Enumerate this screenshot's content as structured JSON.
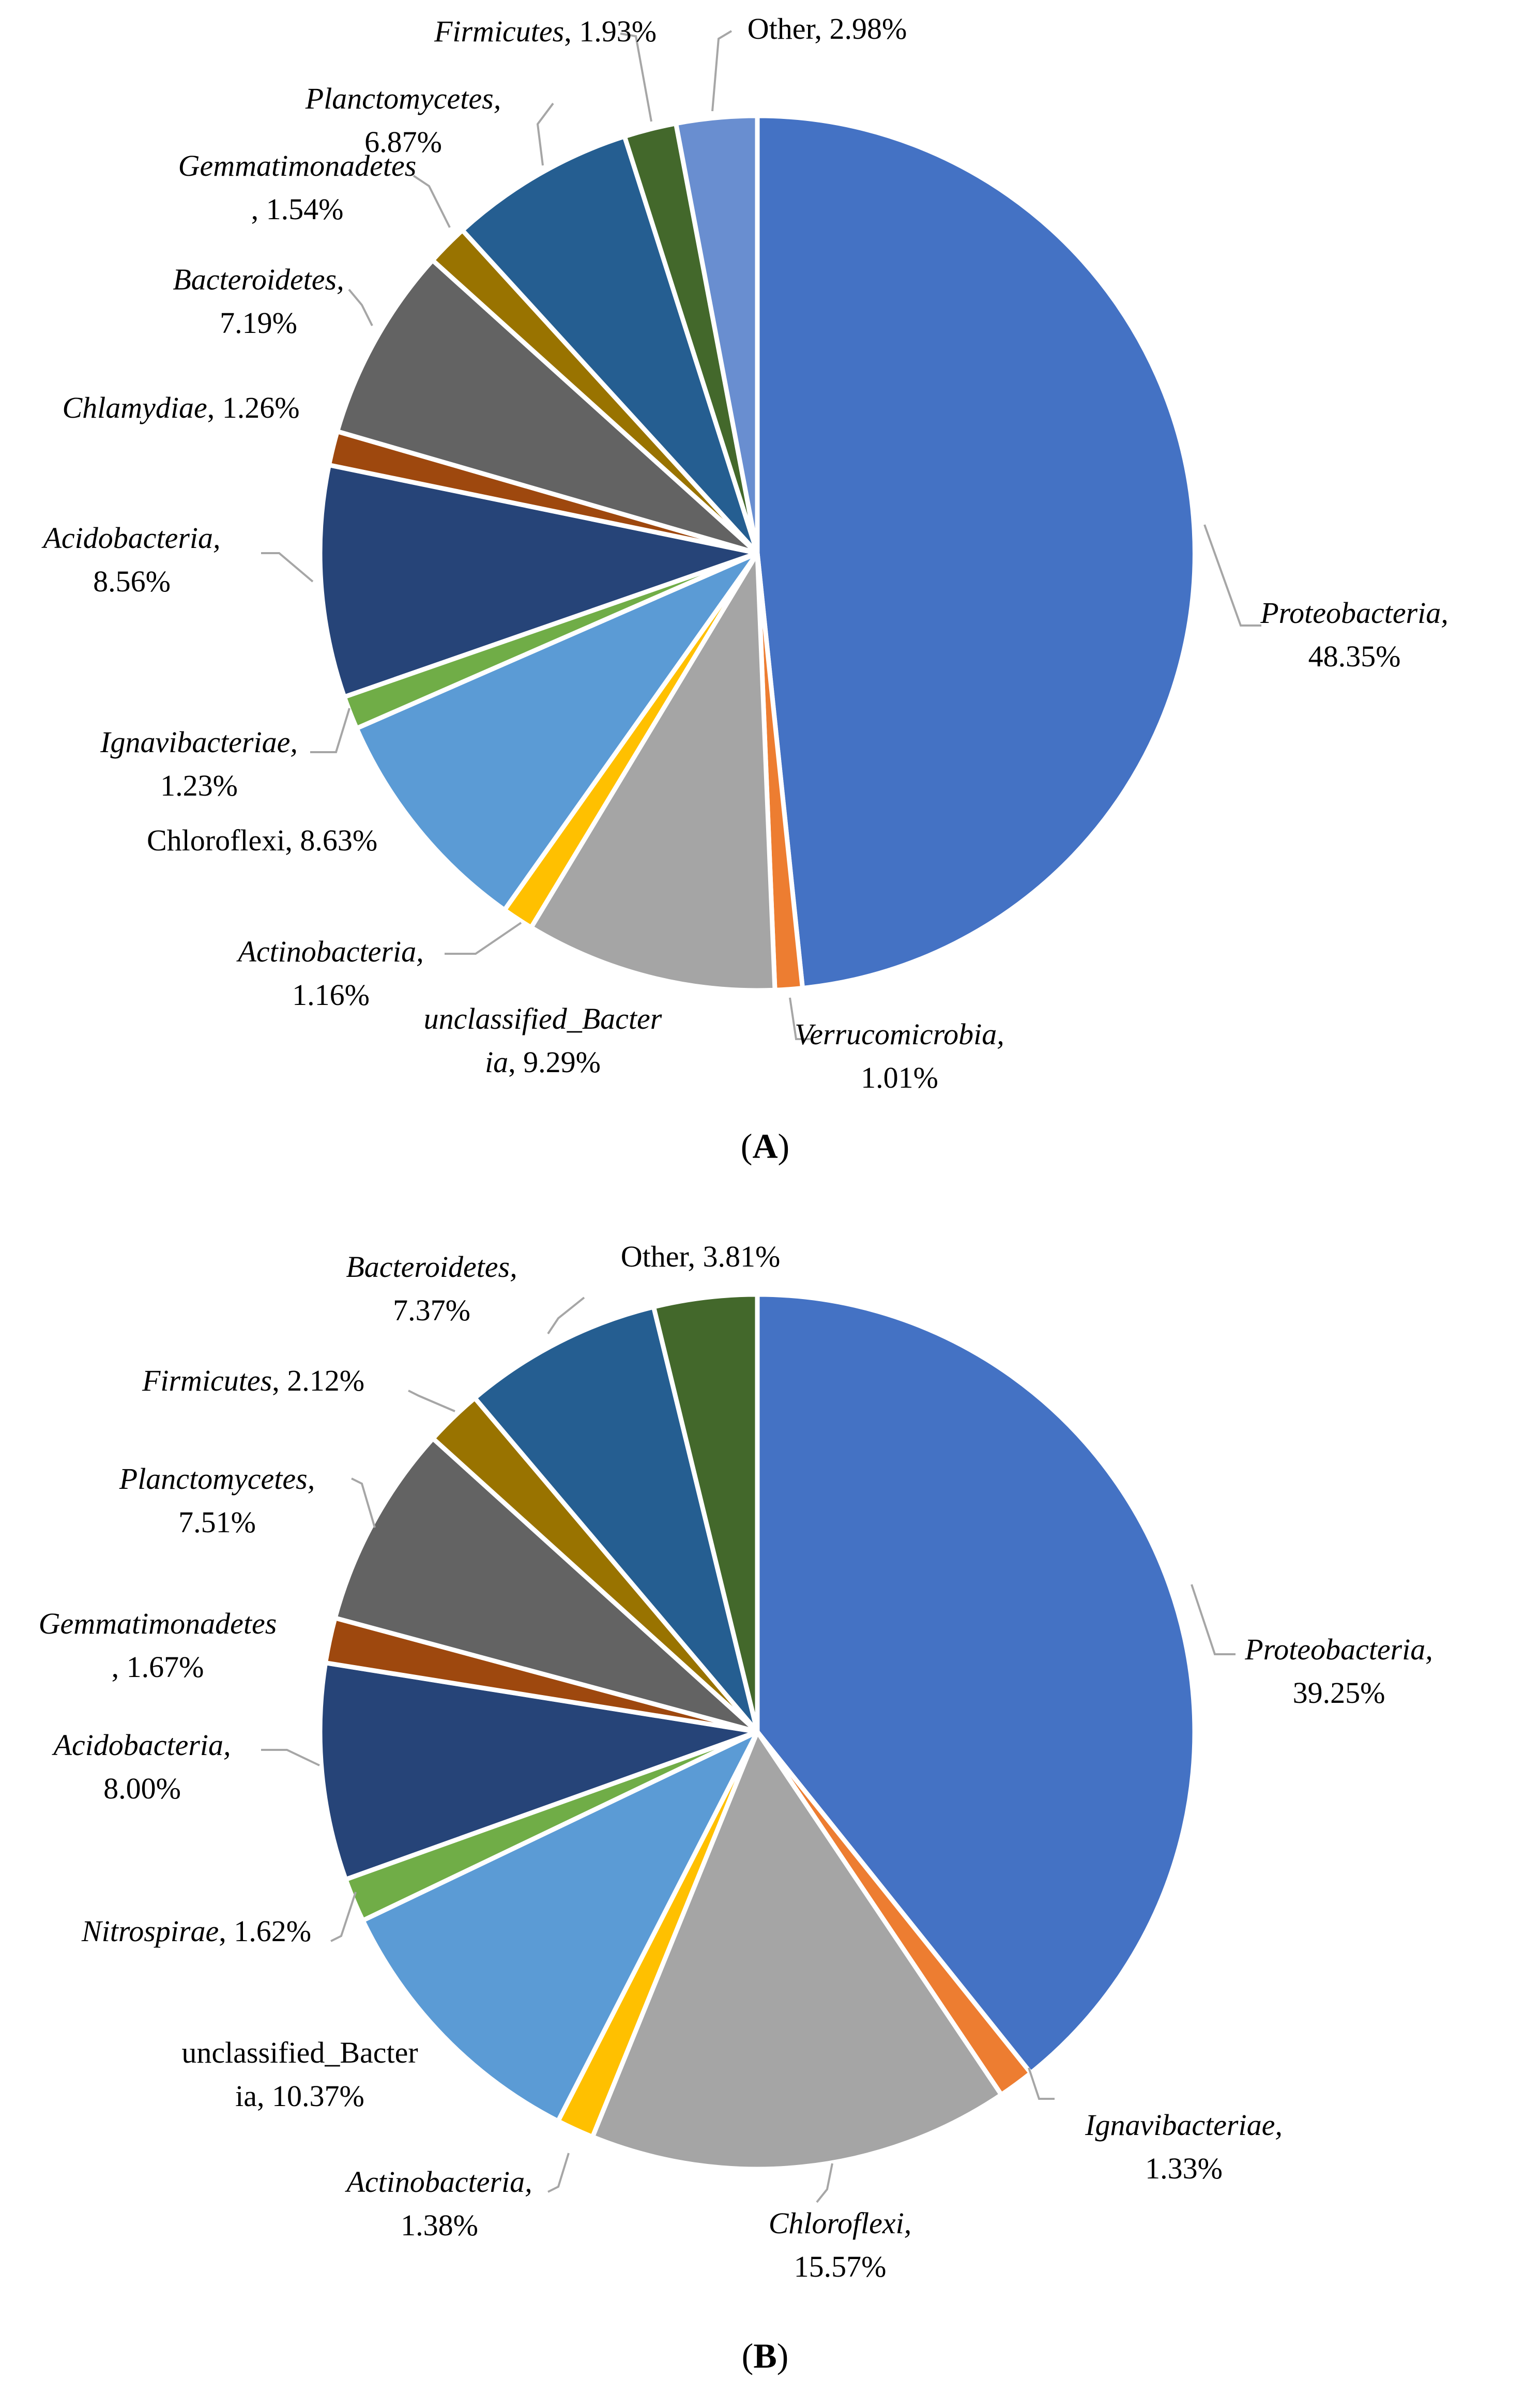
{
  "chart_data": [
    {
      "type": "pie",
      "caption": {
        "open": "(",
        "letter": "A",
        "close": ")"
      },
      "slices": [
        {
          "name": "Proteobacteria",
          "italic": true,
          "value": 48.35,
          "color": "#4472C4",
          "label": [
            [
              {
                "t": "Proteobacteria,",
                "i": true
              }
            ],
            [
              {
                "t": "48.35%"
              }
            ]
          ]
        },
        {
          "name": "Verrucomicrobia",
          "italic": true,
          "value": 1.01,
          "color": "#ED7D31",
          "label": [
            [
              {
                "t": "Verrucomicrobia,",
                "i": true
              }
            ],
            [
              {
                "t": "1.01%"
              }
            ]
          ]
        },
        {
          "name": "unclassified_Bacteria",
          "italic": true,
          "value": 9.29,
          "color": "#A5A5A5",
          "label": [
            [
              {
                "t": "unclassified_Bacter",
                "i": true
              }
            ],
            [
              {
                "t": "ia",
                "i": true
              },
              {
                "t": ", 9.29%"
              }
            ]
          ]
        },
        {
          "name": "Actinobacteria",
          "italic": true,
          "value": 1.16,
          "color": "#FFC000",
          "label": [
            [
              {
                "t": "Actinobacteria,",
                "i": true
              }
            ],
            [
              {
                "t": "1.16%"
              }
            ]
          ]
        },
        {
          "name": "Chloroflexi",
          "italic": false,
          "value": 8.63,
          "color": "#5B9BD5",
          "label": [
            [
              {
                "t": "Chloroflexi, 8.63%"
              }
            ]
          ]
        },
        {
          "name": "Ignavibacteriae",
          "italic": true,
          "value": 1.23,
          "color": "#70AD47",
          "label": [
            [
              {
                "t": "Ignavibacteriae,",
                "i": true
              }
            ],
            [
              {
                "t": "1.23%"
              }
            ]
          ]
        },
        {
          "name": "Acidobacteria",
          "italic": true,
          "value": 8.56,
          "color": "#264478",
          "label": [
            [
              {
                "t": "Acidobacteria,",
                "i": true
              }
            ],
            [
              {
                "t": "8.56%"
              }
            ]
          ]
        },
        {
          "name": "Chlamydiae",
          "italic": true,
          "value": 1.26,
          "color": "#9E480E",
          "label": [
            [
              {
                "t": "Chlamydiae",
                "i": true
              },
              {
                "t": ", 1.26%"
              }
            ]
          ]
        },
        {
          "name": "Bacteroidetes",
          "italic": true,
          "value": 7.19,
          "color": "#636363",
          "label": [
            [
              {
                "t": "Bacteroidetes,",
                "i": true
              }
            ],
            [
              {
                "t": "7.19%"
              }
            ]
          ]
        },
        {
          "name": "Gemmatimonadetes",
          "italic": true,
          "value": 1.54,
          "color": "#997300",
          "label": [
            [
              {
                "t": "Gemmatimonadetes",
                "i": true
              }
            ],
            [
              {
                "t": ", 1.54%"
              }
            ]
          ]
        },
        {
          "name": "Planctomycetes",
          "italic": true,
          "value": 6.87,
          "color": "#255E91",
          "label": [
            [
              {
                "t": "Planctomycetes,",
                "i": true
              }
            ],
            [
              {
                "t": "6.87%"
              }
            ]
          ]
        },
        {
          "name": "Firmicutes",
          "italic": true,
          "value": 1.93,
          "color": "#43682B",
          "label": [
            [
              {
                "t": "Firmicutes",
                "i": true
              },
              {
                "t": ", 1.93%"
              }
            ]
          ]
        },
        {
          "name": "Other",
          "italic": false,
          "value": 2.98,
          "color": "#698ED0",
          "label": [
            [
              {
                "t": "Other, 2.98%"
              }
            ]
          ]
        }
      ]
    },
    {
      "type": "pie",
      "caption": {
        "open": "(",
        "letter": "B",
        "close": ")"
      },
      "slices": [
        {
          "name": "Proteobacteria",
          "italic": true,
          "value": 39.25,
          "color": "#4472C4",
          "label": [
            [
              {
                "t": "Proteobacteria,",
                "i": true
              }
            ],
            [
              {
                "t": "39.25%"
              }
            ]
          ]
        },
        {
          "name": "Ignavibacteriae",
          "italic": true,
          "value": 1.33,
          "color": "#ED7D31",
          "label": [
            [
              {
                "t": "Ignavibacteriae,",
                "i": true
              }
            ],
            [
              {
                "t": "1.33%"
              }
            ]
          ]
        },
        {
          "name": "Chloroflexi",
          "italic": true,
          "value": 15.57,
          "color": "#A5A5A5",
          "label": [
            [
              {
                "t": "Chloroflexi,",
                "i": true
              }
            ],
            [
              {
                "t": "15.57%"
              }
            ]
          ]
        },
        {
          "name": "Actinobacteria",
          "italic": true,
          "value": 1.38,
          "color": "#FFC000",
          "label": [
            [
              {
                "t": "Actinobacteria,",
                "i": true
              }
            ],
            [
              {
                "t": "1.38%"
              }
            ]
          ]
        },
        {
          "name": "unclassified_Bacteria",
          "italic": false,
          "value": 10.37,
          "color": "#5B9BD5",
          "label": [
            [
              {
                "t": "unclassified_Bacter"
              }
            ],
            [
              {
                "t": "ia, 10.37%"
              }
            ]
          ]
        },
        {
          "name": "Nitrospirae",
          "italic": true,
          "value": 1.62,
          "color": "#70AD47",
          "label": [
            [
              {
                "t": "Nitrospirae",
                "i": true
              },
              {
                "t": ", 1.62%"
              }
            ]
          ]
        },
        {
          "name": "Acidobacteria",
          "italic": true,
          "value": 8.0,
          "color": "#264478",
          "label": [
            [
              {
                "t": "Acidobacteria,",
                "i": true
              }
            ],
            [
              {
                "t": "8.00%"
              }
            ]
          ]
        },
        {
          "name": "Gemmatimonadetes",
          "italic": true,
          "value": 1.67,
          "color": "#9E480E",
          "label": [
            [
              {
                "t": "Gemmatimonadetes",
                "i": true
              }
            ],
            [
              {
                "t": ", 1.67%"
              }
            ]
          ]
        },
        {
          "name": "Planctomycetes",
          "italic": true,
          "value": 7.51,
          "color": "#636363",
          "label": [
            [
              {
                "t": "Planctomycetes,",
                "i": true
              }
            ],
            [
              {
                "t": "7.51%"
              }
            ]
          ]
        },
        {
          "name": "Firmicutes",
          "italic": true,
          "value": 2.12,
          "color": "#997300",
          "label": [
            [
              {
                "t": "Firmicutes",
                "i": true
              },
              {
                "t": ", 2.12%"
              }
            ]
          ]
        },
        {
          "name": "Bacteroidetes",
          "italic": true,
          "value": 7.37,
          "color": "#255E91",
          "label": [
            [
              {
                "t": "Bacteroidetes,",
                "i": true
              }
            ],
            [
              {
                "t": "7.37%"
              }
            ]
          ]
        },
        {
          "name": "Other",
          "italic": false,
          "value": 3.81,
          "color": "#43682B",
          "label": [
            [
              {
                "t": "Other, 3.81%"
              }
            ]
          ]
        }
      ]
    }
  ]
}
